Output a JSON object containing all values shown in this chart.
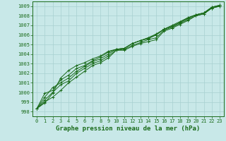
{
  "x": [
    0,
    1,
    2,
    3,
    4,
    5,
    6,
    7,
    8,
    9,
    10,
    11,
    12,
    13,
    14,
    15,
    16,
    17,
    18,
    19,
    20,
    21,
    22,
    23
  ],
  "series": [
    [
      998.3,
      999.0,
      999.5,
      1000.2,
      1001.0,
      1001.6,
      1002.2,
      1002.8,
      1003.1,
      1003.6,
      1004.4,
      1004.4,
      1004.8,
      1005.1,
      1005.3,
      1005.5,
      1006.4,
      1006.7,
      1007.1,
      1007.5,
      1008.0,
      1008.2,
      1008.8,
      1009.0
    ],
    [
      998.3,
      999.2,
      1000.0,
      1000.8,
      1001.2,
      1002.0,
      1002.5,
      1003.0,
      1003.3,
      1003.8,
      1004.4,
      1004.5,
      1004.9,
      1005.2,
      1005.5,
      1005.7,
      1006.5,
      1006.8,
      1007.2,
      1007.6,
      1008.0,
      1008.2,
      1008.8,
      1009.0
    ],
    [
      998.3,
      999.5,
      1000.5,
      1001.0,
      1001.5,
      1002.2,
      1002.7,
      1003.2,
      1003.5,
      1004.0,
      1004.5,
      1004.6,
      1005.1,
      1005.4,
      1005.6,
      1006.0,
      1006.6,
      1006.9,
      1007.3,
      1007.7,
      1008.1,
      1008.3,
      1008.8,
      1009.1
    ],
    [
      998.3,
      999.9,
      1000.2,
      1001.3,
      1001.8,
      1002.5,
      1002.8,
      1003.3,
      1003.7,
      1004.2,
      1004.5,
      1004.6,
      1005.1,
      1005.4,
      1005.7,
      1006.0,
      1006.6,
      1006.9,
      1007.3,
      1007.8,
      1008.1,
      1008.3,
      1008.9,
      1009.1
    ],
    [
      998.3,
      998.9,
      999.9,
      1001.5,
      1002.3,
      1002.8,
      1003.1,
      1003.5,
      1003.8,
      1004.3,
      1004.5,
      1004.6,
      1005.1,
      1005.4,
      1005.7,
      1006.1,
      1006.6,
      1007.0,
      1007.4,
      1007.8,
      1008.1,
      1008.3,
      1008.9,
      1009.1
    ]
  ],
  "line_color": "#1a6b1a",
  "bg_color": "#c8e8e8",
  "grid_color": "#a8d0d0",
  "ylim": [
    997.5,
    1009.5
  ],
  "yticks": [
    998,
    999,
    1000,
    1001,
    1002,
    1003,
    1004,
    1005,
    1006,
    1007,
    1008,
    1009
  ],
  "xticks": [
    0,
    1,
    2,
    3,
    4,
    5,
    6,
    7,
    8,
    9,
    10,
    11,
    12,
    13,
    14,
    15,
    16,
    17,
    18,
    19,
    20,
    21,
    22,
    23
  ],
  "xlabel": "Graphe pression niveau de la mer (hPa)",
  "xlabel_fontsize": 6.5,
  "tick_fontsize": 5.0,
  "marker": "+"
}
